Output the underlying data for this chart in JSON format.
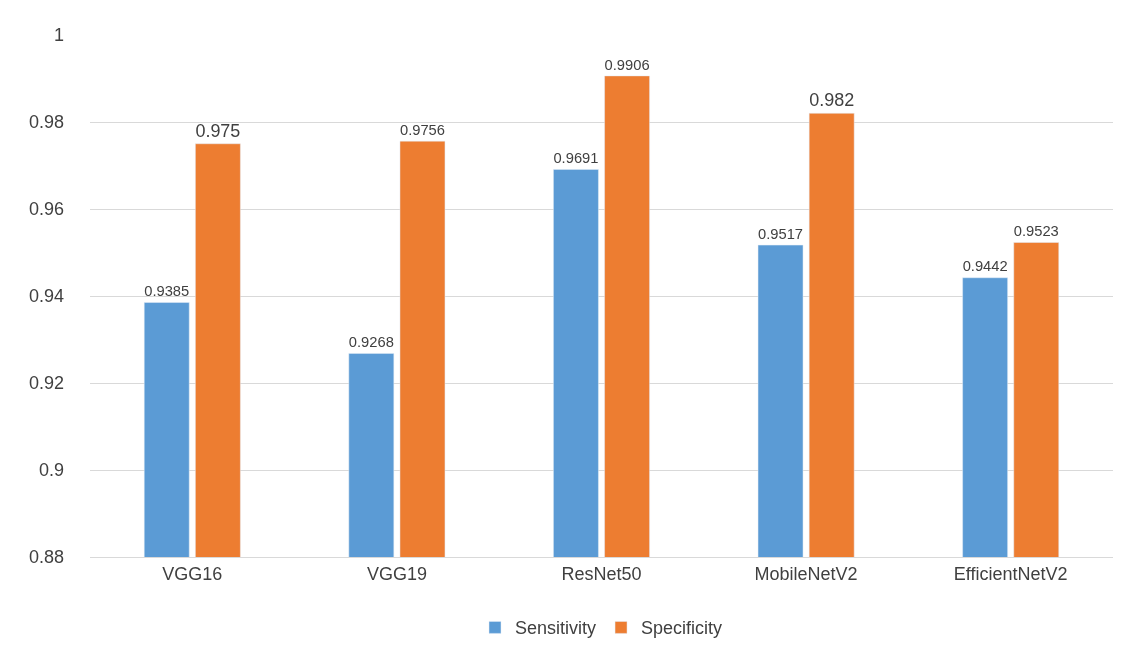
{
  "chart_data": {
    "type": "bar",
    "categories": [
      "VGG16",
      "VGG19",
      "ResNet50",
      "MobileNetV2",
      "EfficientNetV2"
    ],
    "series": [
      {
        "name": "Sensitivity",
        "color": "#5b9bd5",
        "values": [
          0.9385,
          0.9268,
          0.9691,
          0.9517,
          0.9442
        ]
      },
      {
        "name": "Specificity",
        "color": "#ed7d31",
        "values": [
          0.975,
          0.9756,
          0.9906,
          0.982,
          0.9523
        ]
      }
    ],
    "ylim": [
      0.88,
      1
    ],
    "yticks": [
      0.88,
      0.9,
      0.92,
      0.94,
      0.96,
      0.98,
      1
    ],
    "grid": "y",
    "legend": "bottom",
    "data_labels": true
  }
}
